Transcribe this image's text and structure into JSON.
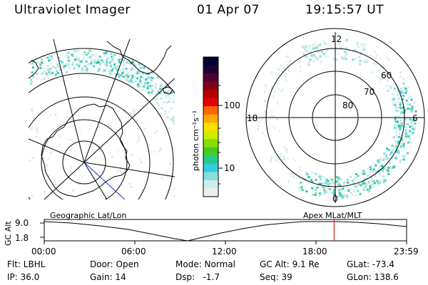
{
  "header": {
    "title": "Ultraviolet Imager",
    "date": "01 Apr 07",
    "time": "19:15:57 UT"
  },
  "colorbar": {
    "unit_label": "photon cm⁻²s⁻¹",
    "ticks": [
      "100",
      "10"
    ],
    "colors": [
      "#000033",
      "#1a0033",
      "#4d0033",
      "#80001a",
      "#b30000",
      "#e60000",
      "#ff6600",
      "#ffaa00",
      "#ffdd00",
      "#ccee00",
      "#88dd00",
      "#44cc22",
      "#22cc88",
      "#33ccdd",
      "#88dddd",
      "#cceeee",
      "#eeeeee"
    ]
  },
  "polar_plot": {
    "mlt_labels": {
      "top": "12",
      "left": "18",
      "right": "6",
      "bottom": "0"
    },
    "lat_labels": [
      "60",
      "70",
      "80"
    ]
  },
  "timeline": {
    "y_label": "GC Alt",
    "y_ticks": [
      "9.0",
      "1.8"
    ],
    "left_label": "Geographic Lat/Lon",
    "right_label": "Apex MLat/MLT",
    "x_ticks": [
      "00:00",
      "06:00",
      "12:00",
      "18:00",
      "23:59"
    ],
    "current_fraction": 0.8
  },
  "footer": {
    "row1": [
      "Flt: LBHL",
      "Door: Open",
      "Mode: Normal",
      "GC Alt: 9.1 Re",
      "GLat: -73.4"
    ],
    "row2": [
      "IP: 36.0",
      "Gain: 14",
      "Dsp:   -1.7",
      "Seq: 39",
      "GLon: 138.6"
    ]
  }
}
